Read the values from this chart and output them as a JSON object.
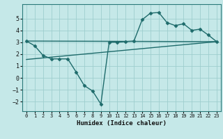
{
  "xlabel": "Humidex (Indice chaleur)",
  "bg_color": "#c5e8e8",
  "grid_color": "#9ecece",
  "line_color": "#1e6b6b",
  "xlim": [
    -0.5,
    23.5
  ],
  "ylim": [
    -2.8,
    6.2
  ],
  "yticks": [
    -2,
    -1,
    0,
    1,
    2,
    3,
    4,
    5
  ],
  "xticks": [
    0,
    1,
    2,
    3,
    4,
    5,
    6,
    7,
    8,
    9,
    10,
    11,
    12,
    13,
    14,
    15,
    16,
    17,
    18,
    19,
    20,
    21,
    22,
    23
  ],
  "data_x": [
    0,
    1,
    2,
    3,
    4,
    5,
    6,
    7,
    8,
    9,
    10,
    11,
    12,
    13,
    14,
    15,
    16,
    17,
    18,
    19,
    20,
    21,
    22,
    23
  ],
  "data_y": [
    3.1,
    2.7,
    1.9,
    1.6,
    1.6,
    1.6,
    0.5,
    -0.65,
    -1.1,
    -2.2,
    3.0,
    3.0,
    3.05,
    3.1,
    4.9,
    5.45,
    5.5,
    4.65,
    4.4,
    4.55,
    4.0,
    4.1,
    3.6,
    3.05
  ],
  "trend1_x": [
    0,
    23
  ],
  "trend1_y": [
    3.1,
    3.05
  ],
  "trend2_x": [
    0,
    23
  ],
  "trend2_y": [
    1.55,
    3.05
  ],
  "markersize": 2.5,
  "linewidth": 1.0
}
